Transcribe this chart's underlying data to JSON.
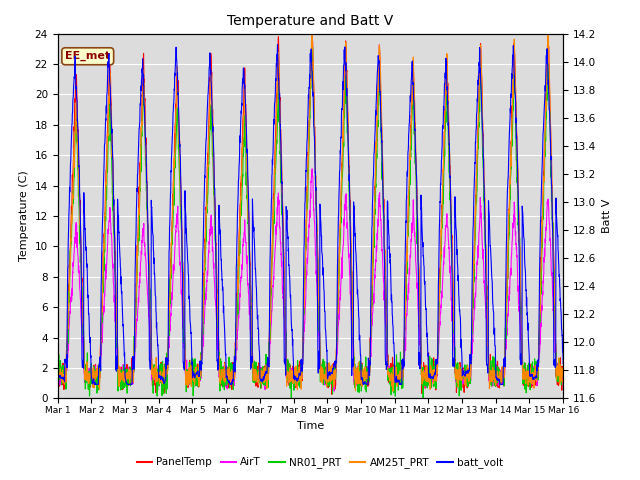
{
  "title": "Temperature and Batt V",
  "xlabel": "Time",
  "ylabel_left": "Temperature (C)",
  "ylabel_right": "Batt V",
  "annotation": "EE_met",
  "ylim_left": [
    0,
    24
  ],
  "ylim_right": [
    11.6,
    14.2
  ],
  "yticks_left": [
    0,
    2,
    4,
    6,
    8,
    10,
    12,
    14,
    16,
    18,
    20,
    22,
    24
  ],
  "yticks_right": [
    11.6,
    11.8,
    12.0,
    12.2,
    12.4,
    12.6,
    12.8,
    13.0,
    13.2,
    13.4,
    13.6,
    13.8,
    14.0,
    14.2
  ],
  "xtick_labels": [
    "Mar 1",
    "Mar 2",
    "Mar 3",
    "Mar 4",
    "Mar 5",
    "Mar 6",
    "Mar 7",
    "Mar 8",
    "Mar 9",
    "Mar 10",
    "Mar 11",
    "Mar 12",
    "Mar 13",
    "Mar 14",
    "Mar 15",
    "Mar 16"
  ],
  "colors": {
    "PanelTemp": "#ff0000",
    "AirT": "#ff00ff",
    "NR01_PRT": "#00cc00",
    "AM25T_PRT": "#ff8800",
    "batt_volt": "#0000ff"
  },
  "legend_entries": [
    "PanelTemp",
    "AirT",
    "NR01_PRT",
    "AM25T_PRT",
    "batt_volt"
  ],
  "background_color": "#dcdcdc",
  "n_days": 15,
  "points_per_day": 144
}
